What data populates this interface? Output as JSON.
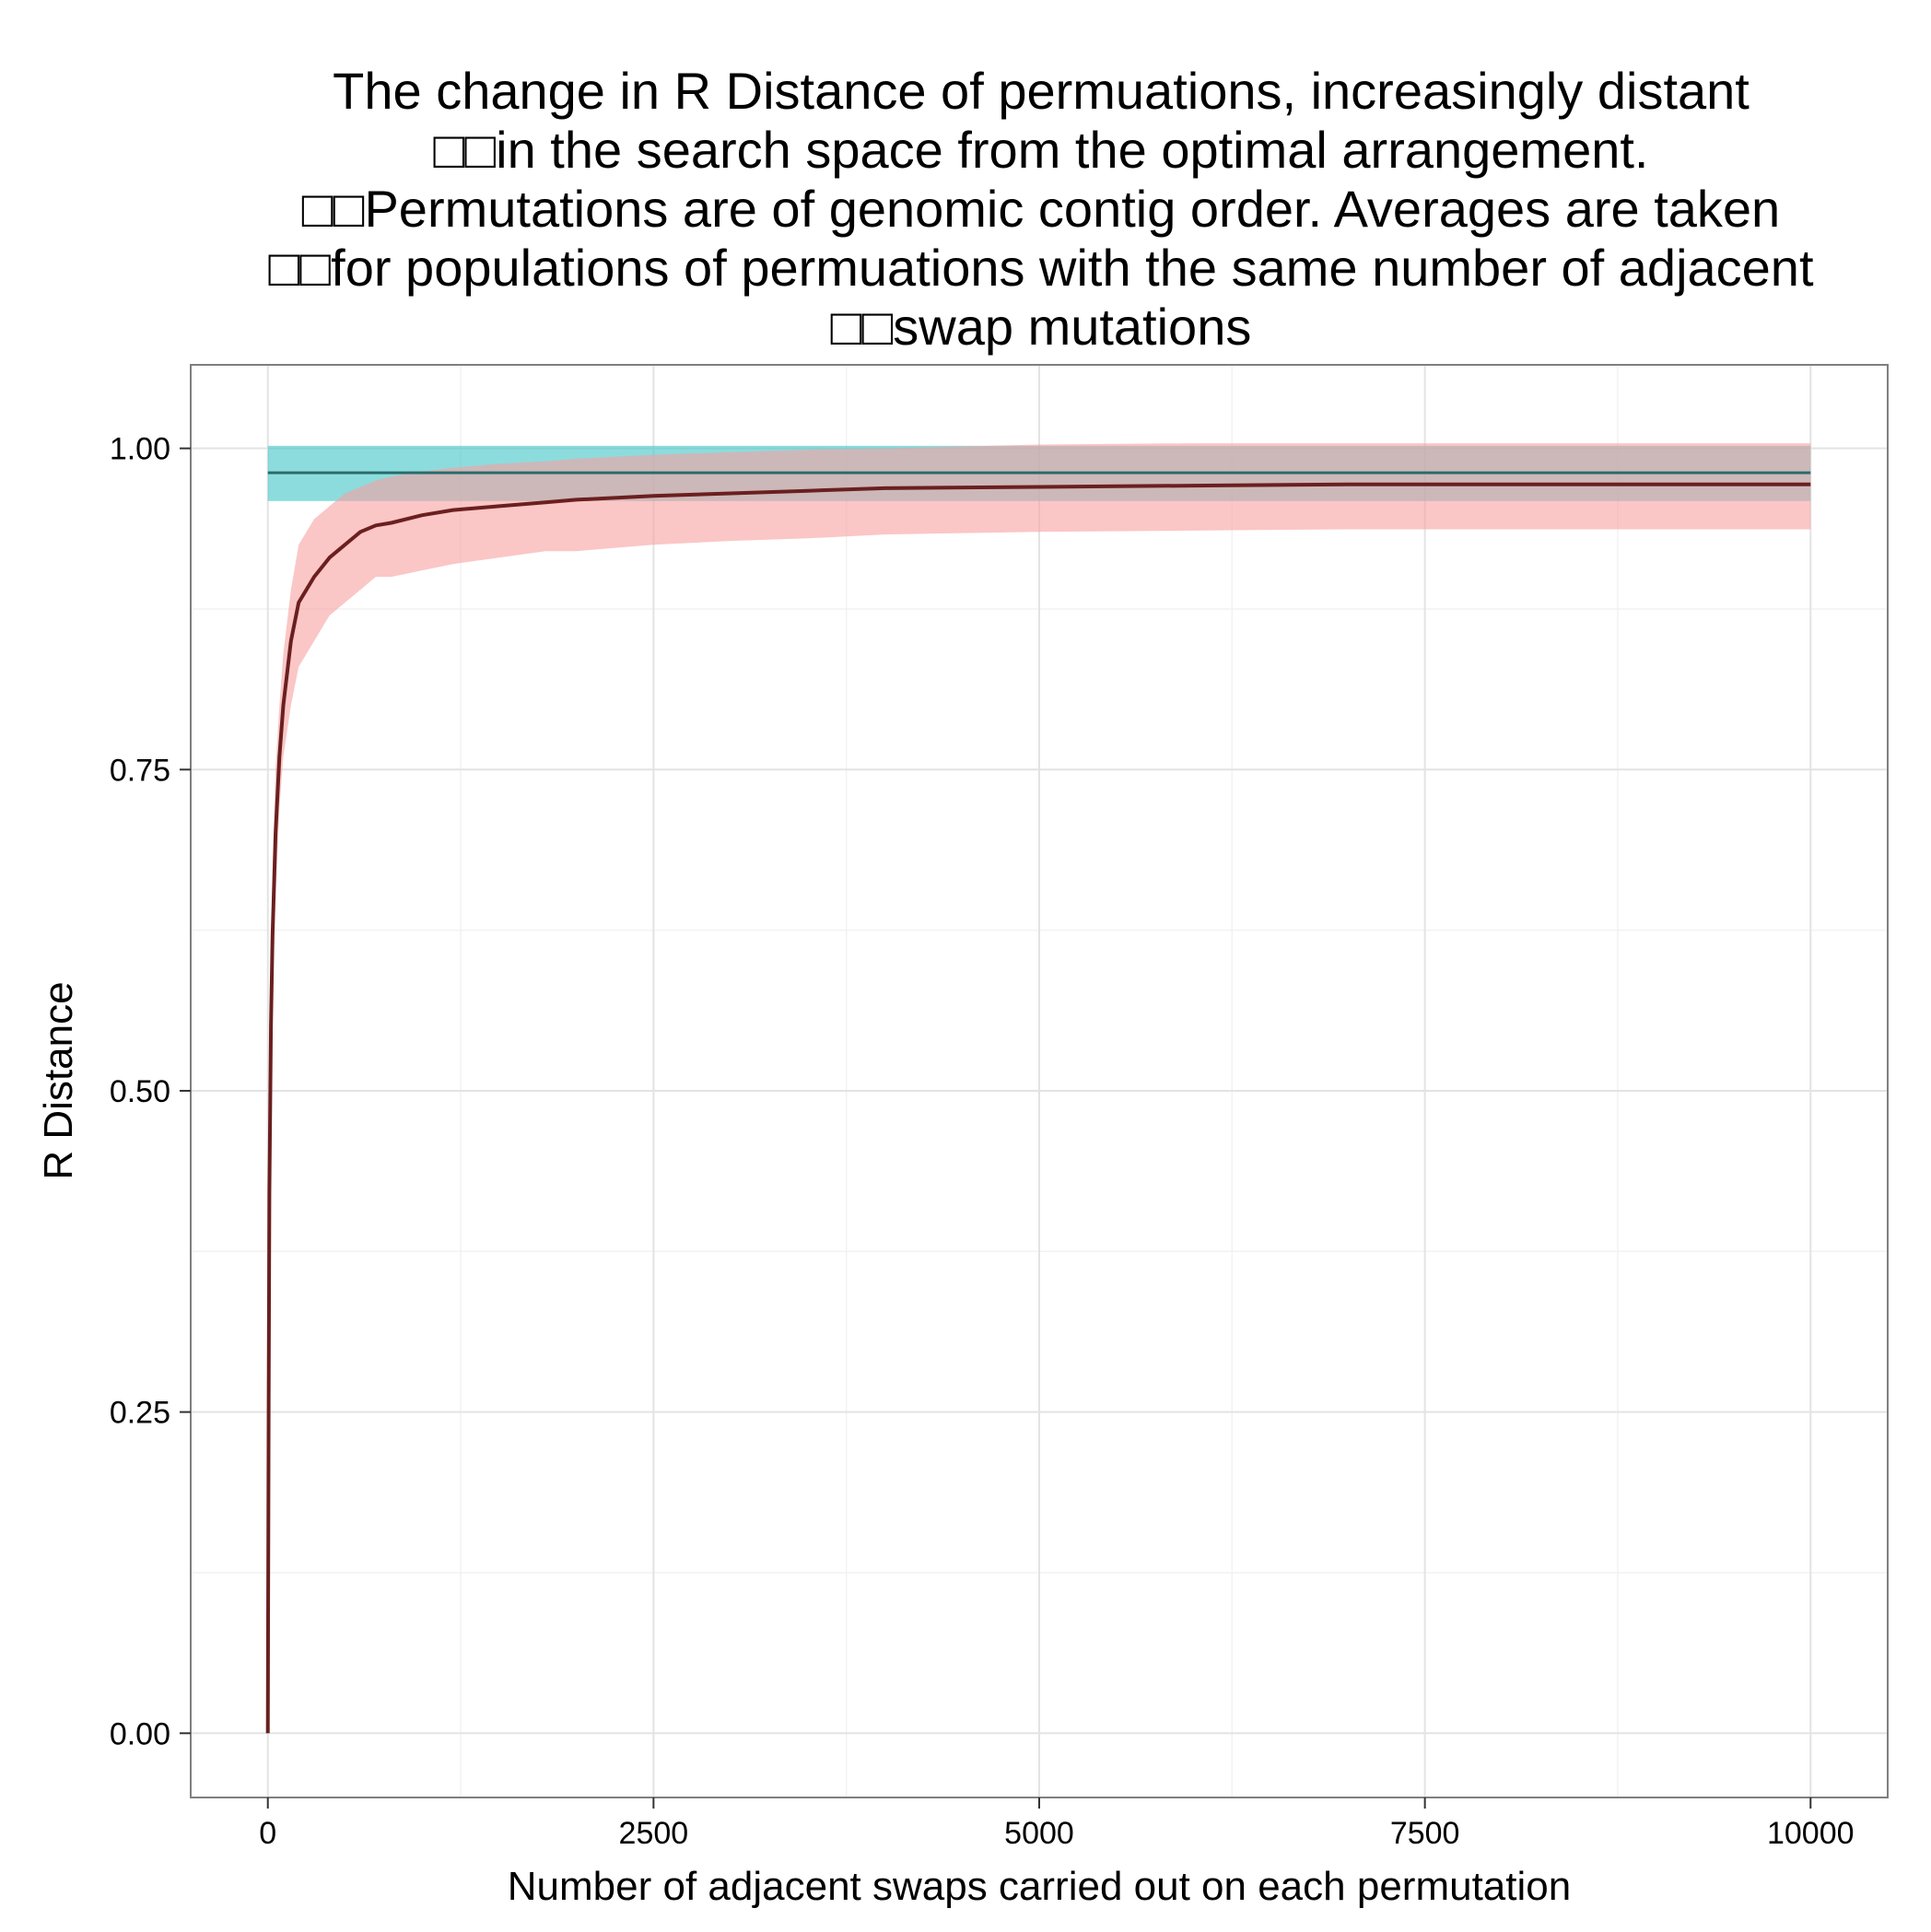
{
  "chart_data": {
    "type": "line",
    "title_lines": [
      "The change in R Distance of permuations, increasingly distant",
      "□□in the search space from the optimal arrangement.",
      "□□Permutations are of genomic contig order. Averages are taken",
      "□□for populations of permuations with the same number of adjacent",
      "□□swap mutations"
    ],
    "xlabel": "Number of adjacent swaps carried out on each permutation",
    "ylabel": "R Distance",
    "xlim": [
      -500,
      10500
    ],
    "ylim": [
      -0.05,
      1.065
    ],
    "x_ticks": [
      0,
      2500,
      5000,
      7500,
      10000
    ],
    "x_tick_labels": [
      "0",
      "2500",
      "5000",
      "7500",
      "10000"
    ],
    "y_ticks": [
      0.0,
      0.25,
      0.5,
      0.75,
      1.0
    ],
    "y_tick_labels": [
      "0.00",
      "0.25",
      "0.50",
      "0.75",
      "1.00"
    ],
    "grid": true,
    "legend": "none",
    "series": [
      {
        "role": "mean_with_ribbon",
        "line_color": "#6b1f1f",
        "ribbon_color": "#f8a0a0",
        "points": [
          [
            0,
            0.0
          ],
          [
            5,
            0.25
          ],
          [
            10,
            0.42
          ],
          [
            20,
            0.55
          ],
          [
            30,
            0.62
          ],
          [
            50,
            0.7
          ],
          [
            75,
            0.76
          ],
          [
            100,
            0.8
          ],
          [
            150,
            0.85
          ],
          [
            200,
            0.88
          ],
          [
            300,
            0.9
          ],
          [
            400,
            0.915
          ],
          [
            500,
            0.925
          ],
          [
            600,
            0.935
          ],
          [
            700,
            0.94
          ],
          [
            800,
            0.942
          ],
          [
            1000,
            0.948
          ],
          [
            1200,
            0.952
          ],
          [
            1500,
            0.955
          ],
          [
            1800,
            0.958
          ],
          [
            2000,
            0.96
          ],
          [
            2500,
            0.963
          ],
          [
            3000,
            0.965
          ],
          [
            3500,
            0.967
          ],
          [
            4000,
            0.969
          ],
          [
            5000,
            0.97
          ],
          [
            6000,
            0.971
          ],
          [
            7000,
            0.972
          ],
          [
            8000,
            0.972
          ],
          [
            9000,
            0.972
          ],
          [
            10000,
            0.972
          ]
        ],
        "ribbon_lower": [
          [
            0,
            0.0
          ],
          [
            5,
            0.2
          ],
          [
            10,
            0.37
          ],
          [
            20,
            0.5
          ],
          [
            30,
            0.57
          ],
          [
            50,
            0.65
          ],
          [
            75,
            0.72
          ],
          [
            100,
            0.76
          ],
          [
            150,
            0.8
          ],
          [
            200,
            0.83
          ],
          [
            300,
            0.85
          ],
          [
            400,
            0.87
          ],
          [
            500,
            0.88
          ],
          [
            600,
            0.89
          ],
          [
            700,
            0.9
          ],
          [
            800,
            0.9
          ],
          [
            1000,
            0.905
          ],
          [
            1200,
            0.91
          ],
          [
            1500,
            0.915
          ],
          [
            1800,
            0.92
          ],
          [
            2000,
            0.92
          ],
          [
            2500,
            0.925
          ],
          [
            3000,
            0.928
          ],
          [
            3500,
            0.93
          ],
          [
            4000,
            0.933
          ],
          [
            5000,
            0.935
          ],
          [
            6000,
            0.936
          ],
          [
            7000,
            0.937
          ],
          [
            8000,
            0.937
          ],
          [
            9000,
            0.937
          ],
          [
            10000,
            0.937
          ]
        ],
        "ribbon_upper": [
          [
            0,
            0.0
          ],
          [
            5,
            0.3
          ],
          [
            10,
            0.47
          ],
          [
            20,
            0.6
          ],
          [
            30,
            0.67
          ],
          [
            50,
            0.75
          ],
          [
            75,
            0.8
          ],
          [
            100,
            0.84
          ],
          [
            150,
            0.89
          ],
          [
            200,
            0.925
          ],
          [
            300,
            0.945
          ],
          [
            400,
            0.955
          ],
          [
            500,
            0.965
          ],
          [
            600,
            0.97
          ],
          [
            700,
            0.975
          ],
          [
            800,
            0.978
          ],
          [
            1000,
            0.982
          ],
          [
            1200,
            0.985
          ],
          [
            1500,
            0.988
          ],
          [
            1800,
            0.99
          ],
          [
            2000,
            0.992
          ],
          [
            2500,
            0.995
          ],
          [
            3000,
            0.997
          ],
          [
            3500,
            0.999
          ],
          [
            4000,
            1.0
          ],
          [
            5000,
            1.003
          ],
          [
            6000,
            1.004
          ],
          [
            7000,
            1.004
          ],
          [
            8000,
            1.004
          ],
          [
            9000,
            1.004
          ],
          [
            10000,
            1.004
          ]
        ]
      },
      {
        "role": "reference_band",
        "line_color": "#2a6b6b",
        "ribbon_color": "#40c4c8",
        "x_range": [
          0,
          10000
        ],
        "mean": 0.981,
        "lower": 0.959,
        "upper": 1.002
      }
    ]
  }
}
